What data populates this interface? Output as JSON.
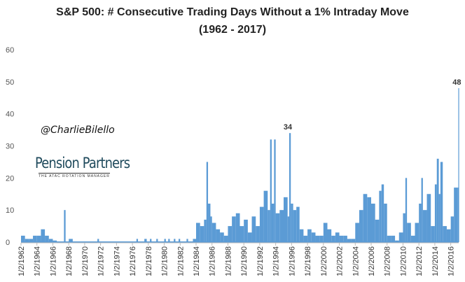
{
  "chart_data": {
    "type": "bar",
    "title": "S&P 500: # Consecutive Trading Days Without a 1% Intraday Move",
    "subtitle": "(1962 - 2017)",
    "xlabel": "",
    "ylabel": "",
    "ylim": [
      0,
      60
    ],
    "yticks": [
      "0",
      "10",
      "20",
      "30",
      "40",
      "50",
      "60"
    ],
    "xlim": [
      1962,
      2017
    ],
    "xtick_labels": [
      "1/2/1962",
      "1/2/1964",
      "1/2/1966",
      "1/2/1968",
      "1/2/1970",
      "1/2/1972",
      "1/2/1974",
      "1/2/1976",
      "1/2/1978",
      "1/2/1980",
      "1/2/1982",
      "1/2/1984",
      "1/2/1986",
      "1/2/1988",
      "1/2/1990",
      "1/2/1992",
      "1/2/1994",
      "1/2/1996",
      "1/2/1998",
      "1/2/2000",
      "1/2/2002",
      "1/2/2004",
      "1/2/2006",
      "1/2/2008",
      "1/2/2010",
      "1/2/2012",
      "1/2/2014",
      "1/2/2016"
    ],
    "grid": false,
    "color": "#5b9bd5",
    "data_labels": [
      {
        "x": 1995.7,
        "text": "34",
        "value": 34
      },
      {
        "x": 2016.95,
        "text": "48",
        "value": 48
      }
    ],
    "x": [
      1962.0,
      1962.5,
      1963,
      1963.5,
      1964,
      1964.5,
      1965,
      1965.5,
      1966,
      1966.5,
      1967,
      1967.4,
      1967.6,
      1968,
      1968.5,
      1971.6,
      1971.8,
      1976.5,
      1976.7,
      1977.5,
      1977.8,
      1978.2,
      1978.4,
      1979,
      1979.2,
      1980,
      1980.2,
      1980.5,
      1980.7,
      1981.2,
      1981.4,
      1981.8,
      1982,
      1982.8,
      1983,
      1983.6,
      1984,
      1984.5,
      1985,
      1985.3,
      1985.5,
      1985.8,
      1986,
      1986.5,
      1987,
      1987.5,
      1988,
      1988.5,
      1989,
      1989.5,
      1990,
      1990.5,
      1991,
      1991.5,
      1992,
      1992.5,
      1993,
      1993.3,
      1993.5,
      1993.8,
      1994,
      1994.5,
      1995,
      1995.5,
      1995.7,
      1995.9,
      1996.2,
      1996.6,
      1997,
      1997.5,
      1998,
      1998.5,
      1999,
      1999.5,
      2000,
      2000.5,
      2001,
      2001.5,
      2002,
      2002.5,
      2003,
      2003.5,
      2004,
      2004.5,
      2005,
      2005.5,
      2006,
      2006.5,
      2007,
      2007.3,
      2007.6,
      2008,
      2008.5,
      2009,
      2009.5,
      2010,
      2010.3,
      2010.5,
      2011,
      2011.5,
      2012,
      2012.3,
      2012.5,
      2013,
      2013.5,
      2014,
      2014.25,
      2014.5,
      2014.7,
      2015,
      2015.5,
      2016,
      2016.4,
      2016.9,
      2016.95
    ],
    "values": [
      2,
      1,
      1,
      2,
      2,
      4,
      2,
      1,
      0.5,
      0,
      0,
      10,
      0,
      1,
      0,
      1,
      0,
      1,
      0,
      1,
      0,
      1,
      0,
      1,
      0,
      1,
      0,
      1,
      0,
      1,
      0,
      1,
      0,
      1,
      0,
      1,
      6,
      5,
      7,
      25,
      12,
      8,
      6,
      4,
      3,
      2,
      5,
      8,
      9,
      5,
      7,
      3,
      8,
      5,
      11,
      16,
      10,
      32,
      12,
      32,
      9,
      10,
      14,
      8,
      34,
      12,
      10,
      11,
      4,
      2,
      4,
      3,
      2,
      2,
      6,
      4,
      2,
      3,
      2,
      2,
      1,
      1,
      6,
      10,
      15,
      14,
      12,
      7,
      16,
      18,
      12,
      2,
      2,
      0.5,
      3,
      9,
      20,
      6,
      2,
      6,
      12,
      20,
      10,
      15,
      5,
      18,
      26,
      15,
      25,
      5,
      4,
      8,
      17,
      17,
      48
    ]
  }
}
